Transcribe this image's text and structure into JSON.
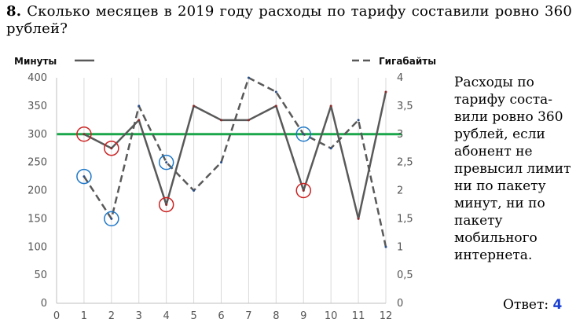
{
  "question": {
    "number": "8.",
    "text": "Сколько месяцев в 2019 году расходы по тарифу составили ровно 360 рублей?"
  },
  "explanation": "Расходы по тарифу состa-вили ровно 360 рублей, если абонент не превысил лимит ни по пакету минут, ни по пакету мобильного интернета.",
  "answer": {
    "label": "Ответ:",
    "value": "4"
  },
  "chart_data": {
    "type": "line",
    "x": [
      1,
      2,
      3,
      4,
      5,
      6,
      7,
      8,
      9,
      10,
      11,
      12
    ],
    "xlim": [
      0,
      12
    ],
    "x_ticks": [
      "0",
      "1",
      "2",
      "3",
      "4",
      "5",
      "6",
      "7",
      "8",
      "9",
      "10",
      "11",
      "12"
    ],
    "ylim_left": [
      0,
      400
    ],
    "y_ticks_left": [
      "0",
      "50",
      "100",
      "150",
      "200",
      "250",
      "300",
      "350",
      "400"
    ],
    "ylim_right": [
      0,
      4
    ],
    "y_ticks_right": [
      "0",
      "0,5",
      "1",
      "1,5",
      "2",
      "2,5",
      "3",
      "3,5",
      "4"
    ],
    "grid": "vertical",
    "legend_position": "top",
    "series": [
      {
        "name": "Минуты",
        "axis": "left",
        "style": "solid",
        "color": "#595959",
        "values": [
          300,
          275,
          325,
          175,
          350,
          325,
          325,
          350,
          200,
          350,
          150,
          375
        ]
      },
      {
        "name": "Гигабайты",
        "axis": "right",
        "style": "dashed",
        "color": "#595959",
        "values": [
          2.25,
          1.5,
          3.5,
          2.5,
          2,
          2.5,
          4,
          3.75,
          3,
          2.75,
          3.25,
          1
        ]
      }
    ],
    "threshold": {
      "axis": "left",
      "value": 300,
      "color": "#1aa64a"
    },
    "marker_colors": {
      "minutes": "#cc2222",
      "gigabytes": "#1f78c8"
    },
    "highlight_minutes_x": [
      1,
      2,
      4,
      9
    ],
    "highlight_gigabytes_x": [
      1,
      2,
      4,
      9
    ]
  }
}
